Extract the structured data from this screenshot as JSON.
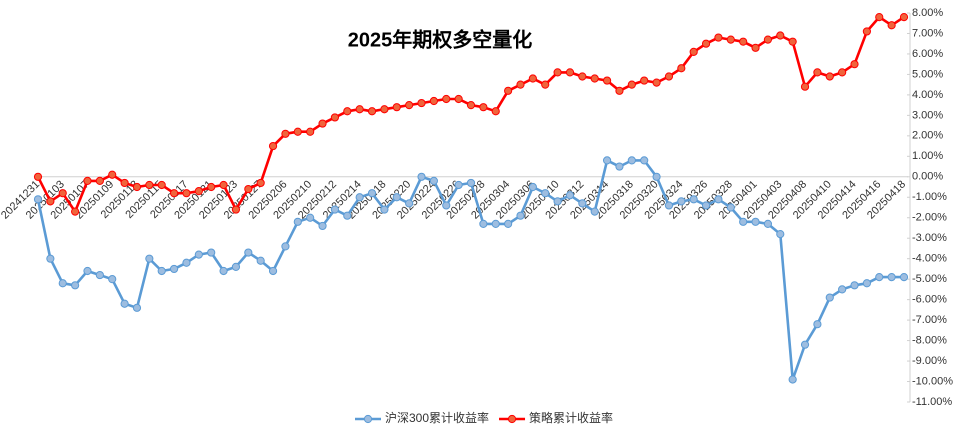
{
  "chart_data": {
    "type": "line",
    "title": "2025年期权多空量化",
    "categories": [
      "20241231",
      null,
      "20250103",
      null,
      "20250107",
      null,
      "20250109",
      null,
      "20250113",
      null,
      "20250115",
      null,
      "20250117",
      null,
      "20250121",
      null,
      "20250123",
      null,
      "20250127",
      null,
      "20250206",
      null,
      "20250210",
      null,
      "20250212",
      null,
      "20250214",
      null,
      "20250218",
      null,
      "20250220",
      null,
      "20250224",
      null,
      "20250226",
      null,
      "20250228",
      null,
      "20250304",
      null,
      "20250306",
      null,
      "20250310",
      null,
      "20250312",
      null,
      "20250314",
      null,
      "20250318",
      null,
      "20250320",
      null,
      "20250324",
      null,
      "20250326",
      null,
      "20250328",
      null,
      "20250401",
      null,
      "20250403",
      null,
      "20250408",
      null,
      "20250410",
      null,
      "20250414",
      null,
      "20250416",
      null,
      "20250418"
    ],
    "series": [
      {
        "name": "沪深300累计收益率",
        "color": "#5b9bd5",
        "marker_fill": "#9dbde0",
        "values": [
          -1.1,
          -4.0,
          -5.2,
          -5.3,
          -4.6,
          -4.8,
          -5.0,
          -6.2,
          -6.4,
          -4.0,
          -4.6,
          -4.5,
          -4.2,
          -3.8,
          -3.7,
          -4.6,
          -4.4,
          -3.7,
          -4.1,
          -4.6,
          -3.4,
          -2.2,
          -2.0,
          -2.4,
          -1.6,
          -1.9,
          -1.0,
          -0.8,
          -1.6,
          -1.0,
          -1.3,
          0.0,
          -0.2,
          -1.4,
          -0.4,
          -0.3,
          -2.3,
          -2.3,
          -2.3,
          -1.9,
          -0.5,
          -0.8,
          -1.2,
          -0.9,
          -1.3,
          -1.7,
          0.8,
          0.5,
          0.8,
          0.8,
          0.0,
          -1.4,
          -1.2,
          -1.1,
          -1.4,
          -1.1,
          -1.5,
          -2.2,
          -2.2,
          -2.3,
          -2.8,
          -9.9,
          -8.2,
          -7.2,
          -5.9,
          -5.5,
          -5.3,
          -5.2,
          -4.9,
          -4.9,
          -4.9
        ]
      },
      {
        "name": "策略累计收益率",
        "color": "#ff0000",
        "marker_fill": "#f0643c",
        "values": [
          0.0,
          -1.2,
          -0.8,
          -1.7,
          -0.2,
          -0.2,
          0.1,
          -0.3,
          -0.5,
          -0.4,
          -0.4,
          -0.8,
          -0.8,
          -0.7,
          -0.5,
          -0.4,
          -1.6,
          -0.6,
          -0.3,
          1.5,
          2.1,
          2.2,
          2.2,
          2.6,
          2.9,
          3.2,
          3.3,
          3.2,
          3.3,
          3.4,
          3.5,
          3.6,
          3.7,
          3.8,
          3.8,
          3.5,
          3.4,
          3.2,
          4.2,
          4.5,
          4.8,
          4.5,
          5.1,
          5.1,
          4.9,
          4.8,
          4.7,
          4.2,
          4.5,
          4.7,
          4.6,
          4.9,
          5.3,
          6.1,
          6.5,
          6.8,
          6.7,
          6.6,
          6.3,
          6.7,
          6.9,
          6.6,
          4.4,
          5.1,
          4.9,
          5.1,
          5.5,
          7.1,
          7.8,
          7.4,
          7.8
        ]
      }
    ],
    "ylim": [
      -11,
      8
    ],
    "yticks": [
      {
        "value": 8,
        "label": "8.00%"
      },
      {
        "value": 7,
        "label": "7.00%"
      },
      {
        "value": 6,
        "label": "6.00%"
      },
      {
        "value": 5,
        "label": "5.00%"
      },
      {
        "value": 4,
        "label": "4.00%"
      },
      {
        "value": 3,
        "label": "3.00%"
      },
      {
        "value": 2,
        "label": "2.00%"
      },
      {
        "value": 1,
        "label": "1.00%"
      },
      {
        "value": 0,
        "label": "0.00%"
      },
      {
        "value": -1,
        "label": "-1.00%"
      },
      {
        "value": -2,
        "label": "-2.00%"
      },
      {
        "value": -3,
        "label": "-3.00%"
      },
      {
        "value": -4,
        "label": "-4.00%"
      },
      {
        "value": -5,
        "label": "-5.00%"
      },
      {
        "value": -6,
        "label": "-6.00%"
      },
      {
        "value": -7,
        "label": "-7.00%"
      },
      {
        "value": -8,
        "label": "-8.00%"
      },
      {
        "value": -9,
        "label": "-9.00%"
      },
      {
        "value": -10,
        "label": "-10.00%"
      },
      {
        "value": -11,
        "label": "-11.00%"
      }
    ],
    "grid": false,
    "y_axis_side": "right",
    "legend": "bottom"
  }
}
